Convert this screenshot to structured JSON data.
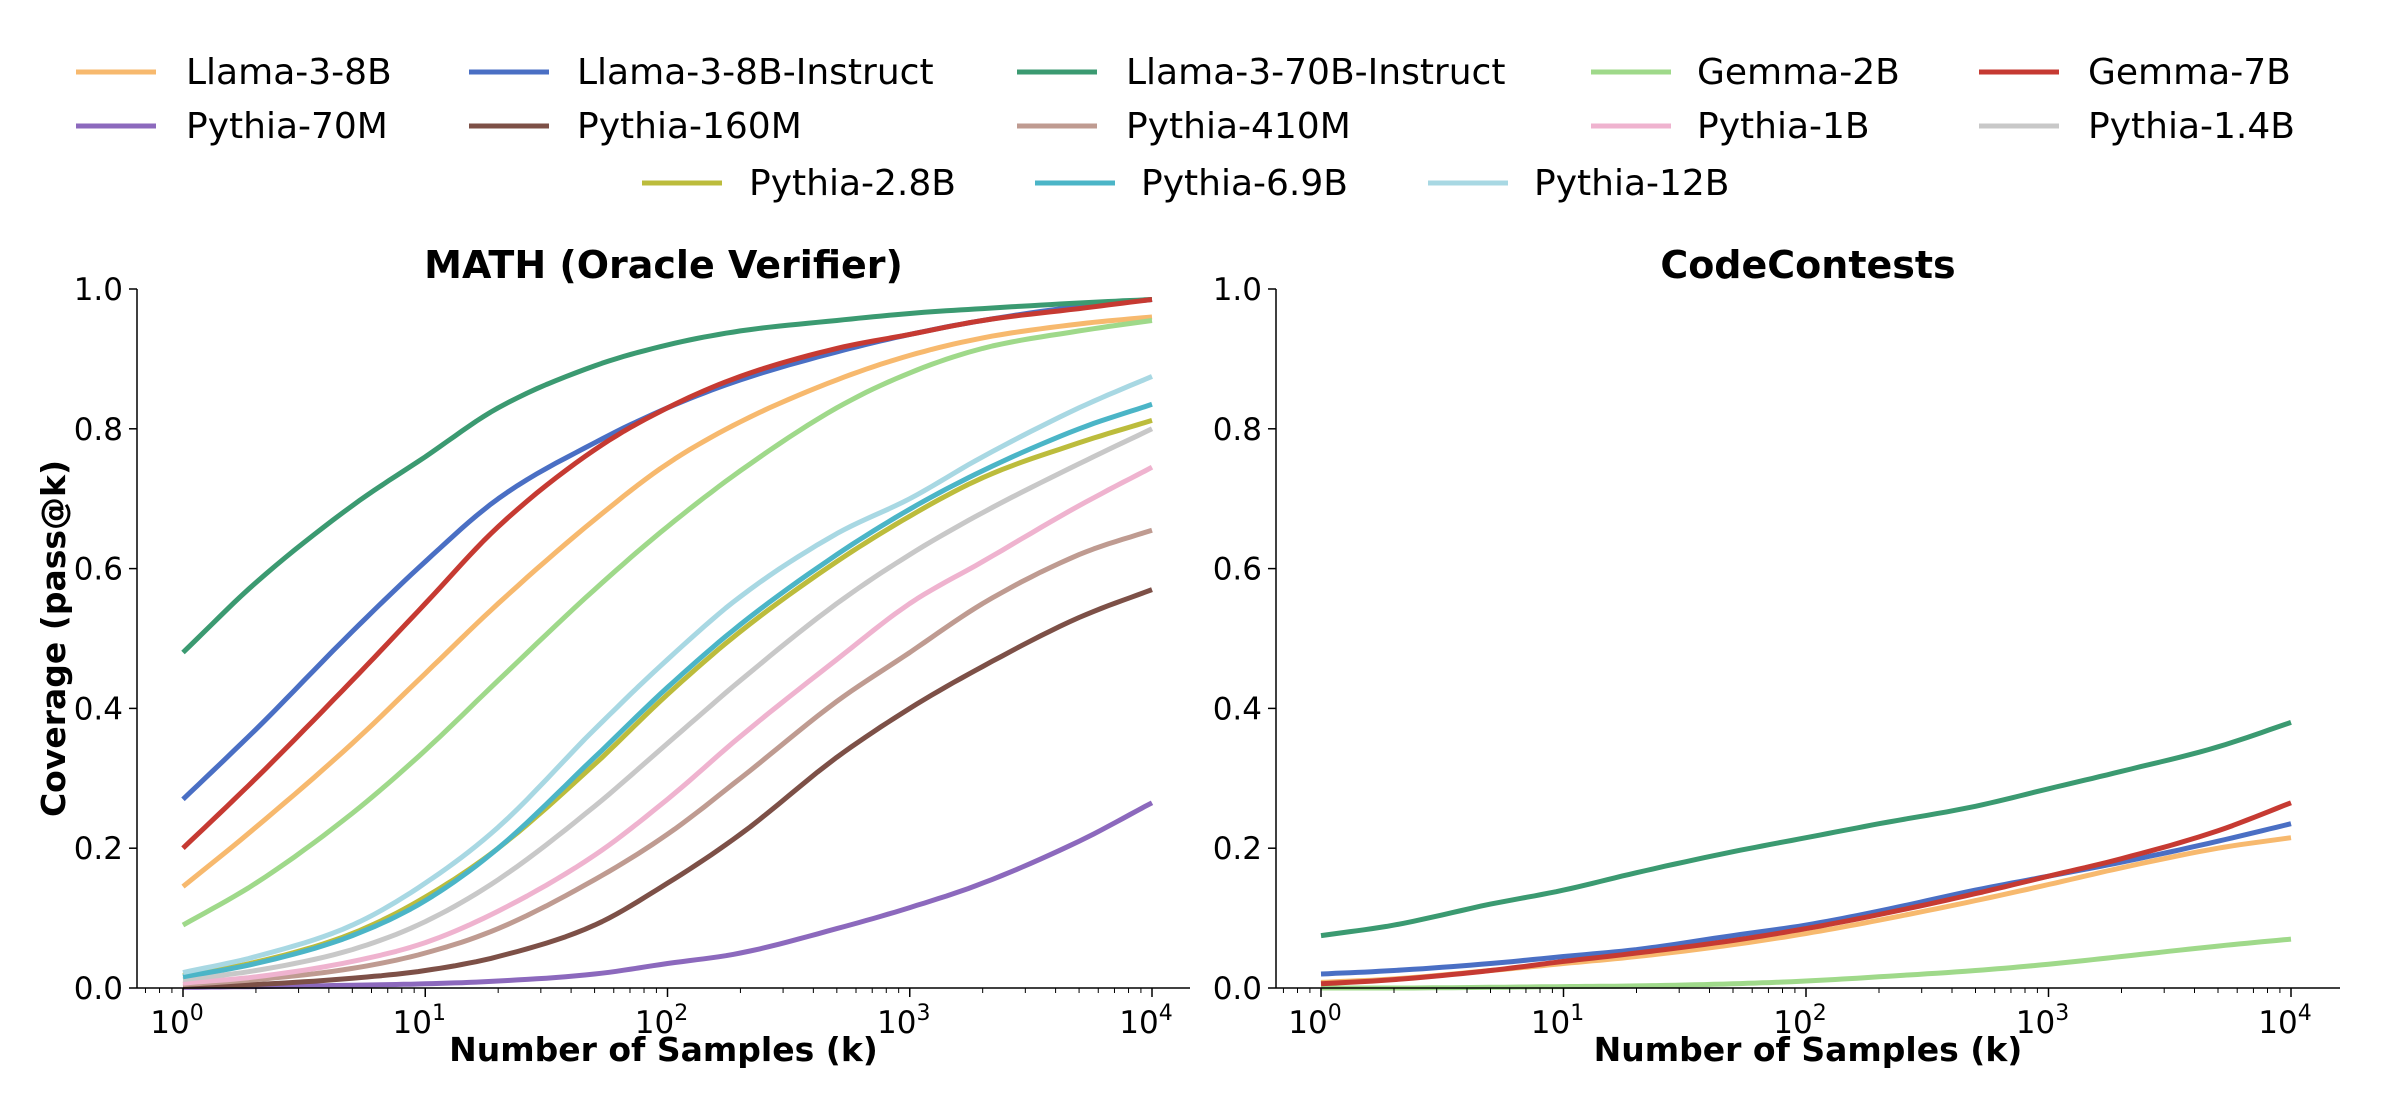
{
  "chart_data": [
    {
      "type": "line",
      "title": "MATH (Oracle Verifier)",
      "xlabel": "Number of Samples (k)",
      "ylabel": "Coverage (pass@k)",
      "xscale": "log",
      "xlim": [
        1,
        10000
      ],
      "ylim": [
        0,
        1
      ],
      "xticks": [
        "10^0",
        "10^1",
        "10^2",
        "10^3",
        "10^4"
      ],
      "yticks": [
        "0.0",
        "0.2",
        "0.4",
        "0.6",
        "0.8",
        "1.0"
      ],
      "grid": false,
      "x": [
        1,
        2,
        5,
        10,
        20,
        50,
        100,
        200,
        500,
        1000,
        2000,
        5000,
        10000
      ],
      "series": [
        {
          "name": "Llama-3-8B",
          "color": "#f7b96e",
          "values": [
            0.145,
            0.23,
            0.35,
            0.45,
            0.55,
            0.67,
            0.75,
            0.81,
            0.87,
            0.905,
            0.93,
            0.95,
            0.96
          ]
        },
        {
          "name": "Llama-3-8B-Instruct",
          "color": "#4a6fc4",
          "values": [
            0.27,
            0.37,
            0.51,
            0.61,
            0.7,
            0.78,
            0.83,
            0.87,
            0.91,
            0.935,
            0.955,
            0.975,
            0.985
          ]
        },
        {
          "name": "Llama-3-70B-Instruct",
          "color": "#3b9a71",
          "values": [
            0.48,
            0.58,
            0.69,
            0.76,
            0.83,
            0.89,
            0.92,
            0.94,
            0.955,
            0.965,
            0.972,
            0.98,
            0.985
          ]
        },
        {
          "name": "Gemma-2B",
          "color": "#9fd98a",
          "values": [
            0.09,
            0.15,
            0.25,
            0.34,
            0.44,
            0.57,
            0.66,
            0.74,
            0.83,
            0.88,
            0.915,
            0.94,
            0.955
          ]
        },
        {
          "name": "Gemma-7B",
          "color": "#c63a32",
          "values": [
            0.2,
            0.3,
            0.44,
            0.55,
            0.66,
            0.77,
            0.83,
            0.875,
            0.915,
            0.935,
            0.955,
            0.972,
            0.985
          ]
        },
        {
          "name": "Pythia-70M",
          "color": "#8c69bd",
          "values": [
            0.001,
            0.002,
            0.004,
            0.006,
            0.01,
            0.02,
            0.035,
            0.05,
            0.085,
            0.115,
            0.15,
            0.21,
            0.265
          ]
        },
        {
          "name": "Pythia-160M",
          "color": "#7d5047",
          "values": [
            0.002,
            0.005,
            0.014,
            0.025,
            0.045,
            0.09,
            0.15,
            0.22,
            0.33,
            0.4,
            0.46,
            0.53,
            0.57
          ]
        },
        {
          "name": "Pythia-410M",
          "color": "#bf9b91",
          "values": [
            0.005,
            0.012,
            0.028,
            0.05,
            0.085,
            0.155,
            0.22,
            0.3,
            0.41,
            0.48,
            0.55,
            0.62,
            0.655
          ]
        },
        {
          "name": "Pythia-1B",
          "color": "#efb3cf",
          "values": [
            0.007,
            0.016,
            0.038,
            0.065,
            0.11,
            0.19,
            0.27,
            0.36,
            0.47,
            0.55,
            0.61,
            0.69,
            0.745
          ]
        },
        {
          "name": "Pythia-1.4B",
          "color": "#c8c8c8",
          "values": [
            0.012,
            0.025,
            0.055,
            0.095,
            0.155,
            0.26,
            0.35,
            0.44,
            0.55,
            0.62,
            0.68,
            0.75,
            0.8
          ]
        },
        {
          "name": "Pythia-2.8B",
          "color": "#bcbc3c",
          "values": [
            0.018,
            0.037,
            0.078,
            0.13,
            0.2,
            0.32,
            0.42,
            0.51,
            0.61,
            0.675,
            0.73,
            0.78,
            0.812
          ]
        },
        {
          "name": "Pythia-6.9B",
          "color": "#4bb5c7",
          "values": [
            0.016,
            0.035,
            0.075,
            0.125,
            0.2,
            0.33,
            0.43,
            0.52,
            0.62,
            0.685,
            0.74,
            0.8,
            0.835
          ]
        },
        {
          "name": "Pythia-12B",
          "color": "#a8d8e3",
          "values": [
            0.022,
            0.045,
            0.09,
            0.15,
            0.23,
            0.37,
            0.47,
            0.56,
            0.65,
            0.7,
            0.76,
            0.83,
            0.875
          ]
        }
      ]
    },
    {
      "type": "line",
      "title": "CodeContests",
      "xlabel": "Number of Samples (k)",
      "ylabel": "",
      "xscale": "log",
      "xlim": [
        1,
        10000
      ],
      "ylim": [
        0,
        1
      ],
      "xticks": [
        "10^0",
        "10^1",
        "10^2",
        "10^3",
        "10^4"
      ],
      "yticks": [
        "0.0",
        "0.2",
        "0.4",
        "0.6",
        "0.8",
        "1.0"
      ],
      "grid": false,
      "x": [
        1,
        2,
        5,
        10,
        20,
        50,
        100,
        200,
        500,
        1000,
        2000,
        5000,
        10000
      ],
      "series": [
        {
          "name": "Llama-3-8B",
          "color": "#f7b96e",
          "values": [
            0.008,
            0.013,
            0.025,
            0.035,
            0.045,
            0.062,
            0.078,
            0.097,
            0.125,
            0.148,
            0.172,
            0.2,
            0.215
          ]
        },
        {
          "name": "Llama-3-8B-Instruct",
          "color": "#4a6fc4",
          "values": [
            0.02,
            0.025,
            0.035,
            0.045,
            0.055,
            0.075,
            0.09,
            0.11,
            0.14,
            0.16,
            0.18,
            0.21,
            0.235
          ]
        },
        {
          "name": "Llama-3-70B-Instruct",
          "color": "#3b9a71",
          "values": [
            0.075,
            0.09,
            0.12,
            0.14,
            0.165,
            0.195,
            0.215,
            0.235,
            0.26,
            0.285,
            0.31,
            0.345,
            0.38
          ]
        },
        {
          "name": "Gemma-2B",
          "color": "#9fd98a",
          "values": [
            0.0,
            0.0,
            0.001,
            0.002,
            0.003,
            0.006,
            0.01,
            0.016,
            0.025,
            0.034,
            0.045,
            0.06,
            0.07
          ]
        },
        {
          "name": "Gemma-7B",
          "color": "#c63a32",
          "values": [
            0.006,
            0.012,
            0.025,
            0.038,
            0.05,
            0.068,
            0.085,
            0.105,
            0.135,
            0.16,
            0.185,
            0.225,
            0.265
          ]
        }
      ]
    }
  ],
  "legend": {
    "placement": "top",
    "entries": [
      {
        "label": "Llama-3-8B",
        "color": "#f7b96e"
      },
      {
        "label": "Llama-3-8B-Instruct",
        "color": "#4a6fc4"
      },
      {
        "label": "Llama-3-70B-Instruct",
        "color": "#3b9a71"
      },
      {
        "label": "Gemma-2B",
        "color": "#9fd98a"
      },
      {
        "label": "Gemma-7B",
        "color": "#c63a32"
      },
      {
        "label": "Pythia-70M",
        "color": "#8c69bd"
      },
      {
        "label": "Pythia-160M",
        "color": "#7d5047"
      },
      {
        "label": "Pythia-410M",
        "color": "#bf9b91"
      },
      {
        "label": "Pythia-1B",
        "color": "#efb3cf"
      },
      {
        "label": "Pythia-1.4B",
        "color": "#c8c8c8"
      },
      {
        "label": "Pythia-2.8B",
        "color": "#bcbc3c"
      },
      {
        "label": "Pythia-6.9B",
        "color": "#4bb5c7"
      },
      {
        "label": "Pythia-12B",
        "color": "#a8d8e3"
      }
    ]
  }
}
